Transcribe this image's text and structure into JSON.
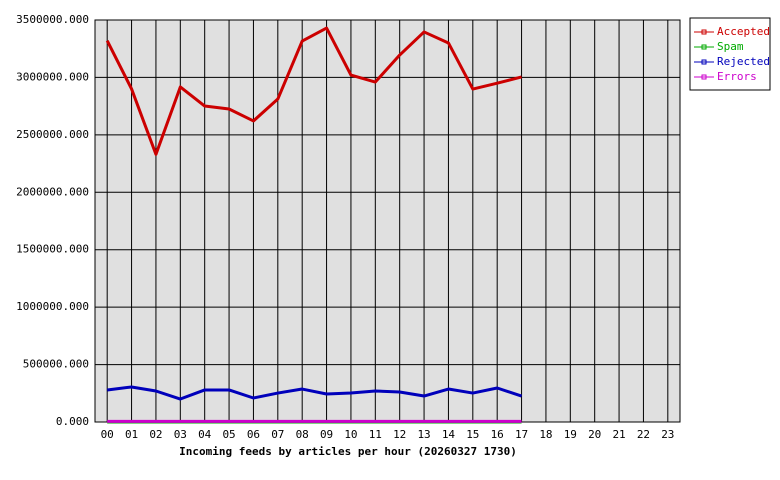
{
  "chart_data": {
    "type": "line",
    "title": "Incoming feeds by articles per hour (20260327 1730)",
    "categories": [
      "00",
      "01",
      "02",
      "03",
      "04",
      "05",
      "06",
      "07",
      "08",
      "09",
      "10",
      "11",
      "12",
      "13",
      "14",
      "15",
      "16",
      "17",
      "18",
      "19",
      "20",
      "21",
      "22",
      "23"
    ],
    "series": [
      {
        "name": "Accepted",
        "color": "#cc0000",
        "values": [
          3320000,
          2900000,
          2330000,
          2917000,
          2751000,
          2725000,
          2621000,
          2812000,
          3317000,
          3430000,
          3021000,
          2960000,
          3195000,
          3396000,
          3300000,
          2899000,
          2950000,
          3004000,
          null,
          null,
          null,
          null,
          null,
          null
        ]
      },
      {
        "name": "Spam",
        "color": "#00aa00",
        "values": [
          0,
          0,
          0,
          0,
          0,
          0,
          0,
          0,
          0,
          0,
          0,
          0,
          0,
          0,
          0,
          0,
          0,
          0,
          null,
          null,
          null,
          null,
          null,
          null
        ]
      },
      {
        "name": "Rejected",
        "color": "#0000bb",
        "values": [
          279000,
          305000,
          270000,
          200000,
          279000,
          279000,
          209000,
          252000,
          287000,
          244000,
          252000,
          270000,
          261000,
          226000,
          287000,
          252000,
          296000,
          226000,
          null,
          null,
          null,
          null,
          null,
          null
        ]
      },
      {
        "name": "Errors",
        "color": "#cc00cc",
        "values": [
          5000,
          5000,
          5000,
          5000,
          5000,
          5000,
          5000,
          5000,
          5000,
          5000,
          5000,
          5000,
          5000,
          5000,
          5000,
          5000,
          5000,
          5000,
          null,
          null,
          null,
          null,
          null,
          null
        ]
      }
    ],
    "ylim": [
      0,
      3500000
    ],
    "yticks": [
      {
        "value": 0,
        "label": "0.000"
      },
      {
        "value": 500000,
        "label": "500000.000"
      },
      {
        "value": 1000000,
        "label": "1000000.000"
      },
      {
        "value": 1500000,
        "label": "1500000.000"
      },
      {
        "value": 2000000,
        "label": "2000000.000"
      },
      {
        "value": 2500000,
        "label": "2500000.000"
      },
      {
        "value": 3000000,
        "label": "3000000.000"
      },
      {
        "value": 3500000,
        "label": "3500000.000"
      }
    ],
    "grid": true,
    "legend": "right"
  }
}
